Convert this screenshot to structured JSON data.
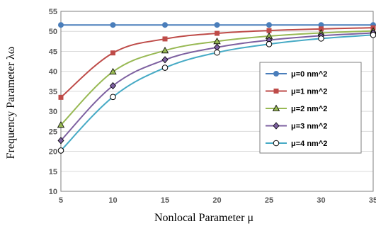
{
  "chart_data": {
    "type": "line",
    "title": "",
    "xlabel": "Nonlocal Parameter μ",
    "ylabel": "Frequency Parameter λω",
    "xlim": [
      5,
      35
    ],
    "ylim": [
      10,
      55
    ],
    "x_ticks": [
      "5",
      "10",
      "15",
      "20",
      "25",
      "30",
      "35"
    ],
    "y_ticks": [
      "10",
      "15",
      "20",
      "25",
      "30",
      "35",
      "40",
      "45",
      "50",
      "55"
    ],
    "grid": "horizontal",
    "legend_position": "right",
    "x": [
      5,
      10,
      15,
      20,
      25,
      30,
      35
    ],
    "series": [
      {
        "name": "μ=0 nm^2",
        "color": "#4a7ebb",
        "marker": "circle-filled",
        "values": [
          51.6,
          51.6,
          51.6,
          51.6,
          51.6,
          51.6,
          51.6
        ]
      },
      {
        "name": "μ=1 nm^2",
        "color": "#be4b48",
        "marker": "square",
        "values": [
          33.5,
          44.6,
          48.1,
          49.5,
          50.2,
          50.6,
          50.9
        ]
      },
      {
        "name": "μ=2 nm^2",
        "color": "#98b954",
        "marker": "triangle",
        "values": [
          26.6,
          39.9,
          45.2,
          47.5,
          48.8,
          49.6,
          50.1
        ]
      },
      {
        "name": "μ=3 nm^2",
        "color": "#7d60a0",
        "marker": "diamond",
        "values": [
          22.7,
          36.4,
          42.9,
          46.0,
          47.8,
          48.9,
          49.6
        ]
      },
      {
        "name": "μ=4 nm^2",
        "color": "#46aac5",
        "marker": "circle-open",
        "values": [
          20.2,
          33.6,
          40.9,
          44.7,
          46.8,
          48.2,
          49.1
        ]
      }
    ]
  }
}
